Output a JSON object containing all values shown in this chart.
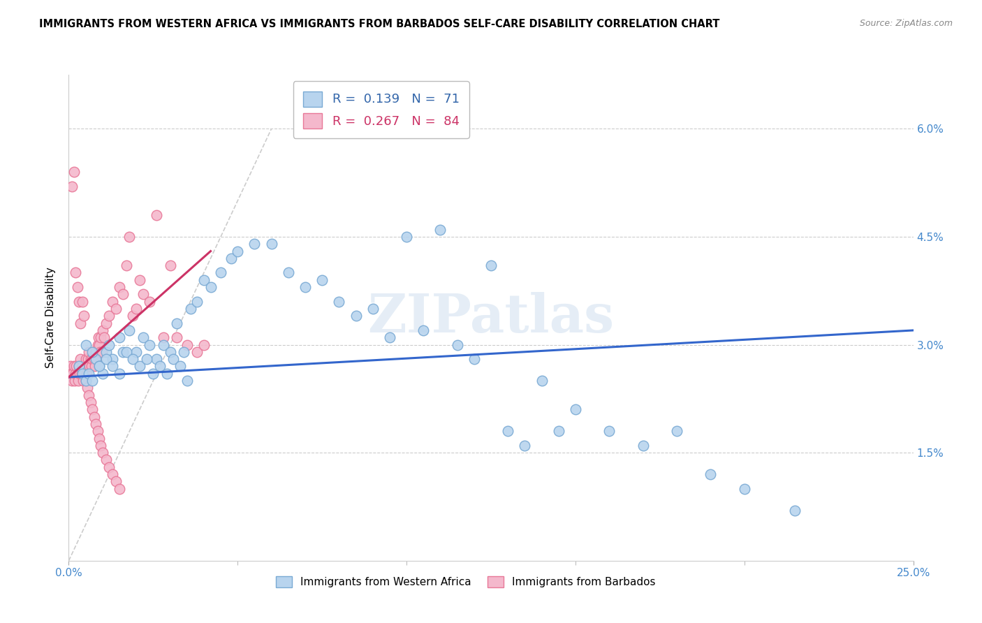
{
  "title": "IMMIGRANTS FROM WESTERN AFRICA VS IMMIGRANTS FROM BARBADOS SELF-CARE DISABILITY CORRELATION CHART",
  "source": "Source: ZipAtlas.com",
  "ylabel": "Self-Care Disability",
  "ytick_values": [
    1.5,
    3.0,
    4.5,
    6.0
  ],
  "xmin": 0.0,
  "xmax": 25.0,
  "ymin": 0.0,
  "ymax": 6.75,
  "blue_label": "Immigrants from Western Africa",
  "pink_label": "Immigrants from Barbados",
  "blue_R": "0.139",
  "blue_N": "71",
  "pink_R": "0.267",
  "pink_N": "84",
  "blue_color": "#b8d4ee",
  "pink_color": "#f4b8cc",
  "blue_edge": "#7aaad4",
  "pink_edge": "#e87898",
  "trend_blue": "#3366cc",
  "trend_pink": "#cc3366",
  "ref_line_color": "#cccccc",
  "grid_color": "#cccccc",
  "axis_color": "#4488cc",
  "watermark": "ZIPatlas",
  "blue_x": [
    0.3,
    0.4,
    0.5,
    0.6,
    0.7,
    0.8,
    0.9,
    1.0,
    1.1,
    1.2,
    1.3,
    1.5,
    1.6,
    1.8,
    2.0,
    2.2,
    2.4,
    2.6,
    2.8,
    3.0,
    3.2,
    3.4,
    3.6,
    3.8,
    4.0,
    4.2,
    4.5,
    4.8,
    5.0,
    5.5,
    6.0,
    6.5,
    7.0,
    7.5,
    8.0,
    8.5,
    9.0,
    9.5,
    10.0,
    10.5,
    11.0,
    11.5,
    12.0,
    12.5,
    13.0,
    13.5,
    14.0,
    14.5,
    15.0,
    16.0,
    17.0,
    18.0,
    19.0,
    20.0,
    21.5,
    0.5,
    0.7,
    0.9,
    1.1,
    1.3,
    1.5,
    1.7,
    1.9,
    2.1,
    2.3,
    2.5,
    2.7,
    2.9,
    3.1,
    3.3,
    3.5
  ],
  "blue_y": [
    2.7,
    2.6,
    2.5,
    2.6,
    2.5,
    2.8,
    2.7,
    2.6,
    2.9,
    3.0,
    2.8,
    3.1,
    2.9,
    3.2,
    2.9,
    3.1,
    3.0,
    2.8,
    3.0,
    2.9,
    3.3,
    2.9,
    3.5,
    3.6,
    3.9,
    3.8,
    4.0,
    4.2,
    4.3,
    4.4,
    4.4,
    4.0,
    3.8,
    3.9,
    3.6,
    3.4,
    3.5,
    3.1,
    4.5,
    3.2,
    4.6,
    3.0,
    2.8,
    4.1,
    1.8,
    1.6,
    2.5,
    1.8,
    2.1,
    1.8,
    1.6,
    1.8,
    1.2,
    1.0,
    0.7,
    3.0,
    2.9,
    2.7,
    2.8,
    2.7,
    2.6,
    2.9,
    2.8,
    2.7,
    2.8,
    2.6,
    2.7,
    2.6,
    2.8,
    2.7,
    2.5
  ],
  "pink_x": [
    0.05,
    0.08,
    0.1,
    0.12,
    0.15,
    0.18,
    0.2,
    0.22,
    0.25,
    0.28,
    0.3,
    0.32,
    0.35,
    0.38,
    0.4,
    0.42,
    0.45,
    0.48,
    0.5,
    0.52,
    0.55,
    0.58,
    0.6,
    0.62,
    0.65,
    0.68,
    0.7,
    0.72,
    0.75,
    0.78,
    0.8,
    0.82,
    0.85,
    0.88,
    0.9,
    0.92,
    0.95,
    0.98,
    1.0,
    1.05,
    1.1,
    1.2,
    1.3,
    1.4,
    1.5,
    1.6,
    1.7,
    1.8,
    1.9,
    2.0,
    2.1,
    2.2,
    2.4,
    2.6,
    2.8,
    3.0,
    3.2,
    3.5,
    3.8,
    4.0,
    0.1,
    0.15,
    0.2,
    0.25,
    0.3,
    0.35,
    0.4,
    0.45,
    0.5,
    0.55,
    0.6,
    0.65,
    0.7,
    0.75,
    0.8,
    0.85,
    0.9,
    0.95,
    1.0,
    1.1,
    1.2,
    1.3,
    1.4,
    1.5
  ],
  "pink_y": [
    2.7,
    2.6,
    2.5,
    2.6,
    2.7,
    2.5,
    2.6,
    2.7,
    2.6,
    2.5,
    2.7,
    2.6,
    2.8,
    2.6,
    2.7,
    2.5,
    2.6,
    2.7,
    2.8,
    2.6,
    2.7,
    2.8,
    2.9,
    2.7,
    2.8,
    2.7,
    2.8,
    2.9,
    2.8,
    2.7,
    2.9,
    2.8,
    3.0,
    3.1,
    3.0,
    2.9,
    3.1,
    2.9,
    3.2,
    3.1,
    3.3,
    3.4,
    3.6,
    3.5,
    3.8,
    3.7,
    4.1,
    4.5,
    3.4,
    3.5,
    3.9,
    3.7,
    3.6,
    4.8,
    3.1,
    4.1,
    3.1,
    3.0,
    2.9,
    3.0,
    5.2,
    5.4,
    4.0,
    3.8,
    3.6,
    3.3,
    3.6,
    3.4,
    2.5,
    2.4,
    2.3,
    2.2,
    2.1,
    2.0,
    1.9,
    1.8,
    1.7,
    1.6,
    1.5,
    1.4,
    1.3,
    1.2,
    1.1,
    1.0
  ],
  "blue_trend_x0": 0.0,
  "blue_trend_y0": 2.55,
  "blue_trend_x1": 25.0,
  "blue_trend_y1": 3.2,
  "pink_trend_x0": 0.0,
  "pink_trend_y0": 2.55,
  "pink_trend_x1": 4.2,
  "pink_trend_y1": 4.3,
  "ref_x0": 0.0,
  "ref_y0": 0.0,
  "ref_x1": 6.0,
  "ref_y1": 6.0
}
